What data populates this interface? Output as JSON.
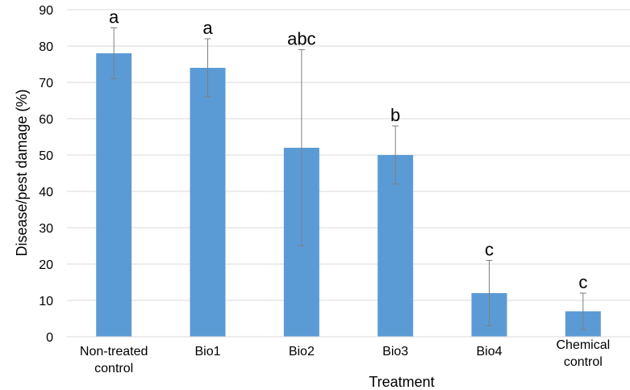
{
  "chart_data": {
    "type": "bar",
    "title": "",
    "xlabel": "Treatment",
    "ylabel": "Disease/pest damage (%)",
    "ylim": [
      0,
      90
    ],
    "yticks": [
      0,
      10,
      20,
      30,
      40,
      50,
      60,
      70,
      80,
      90
    ],
    "grid": true,
    "legend": "none",
    "bar_color": "#5b9bd5",
    "categories": [
      [
        "Non-treated",
        "control"
      ],
      [
        "Bio1"
      ],
      [
        "Bio2"
      ],
      [
        "Bio3"
      ],
      [
        "Bio4"
      ],
      [
        "Chemical",
        "control"
      ]
    ],
    "values": [
      78,
      74,
      52,
      50,
      12,
      7
    ],
    "error_low": [
      71,
      66,
      25,
      42,
      3,
      2
    ],
    "error_high": [
      85,
      82,
      79,
      58,
      21,
      12
    ],
    "significance_letters": [
      "a",
      "a",
      "abc",
      "b",
      "c",
      "c"
    ]
  }
}
